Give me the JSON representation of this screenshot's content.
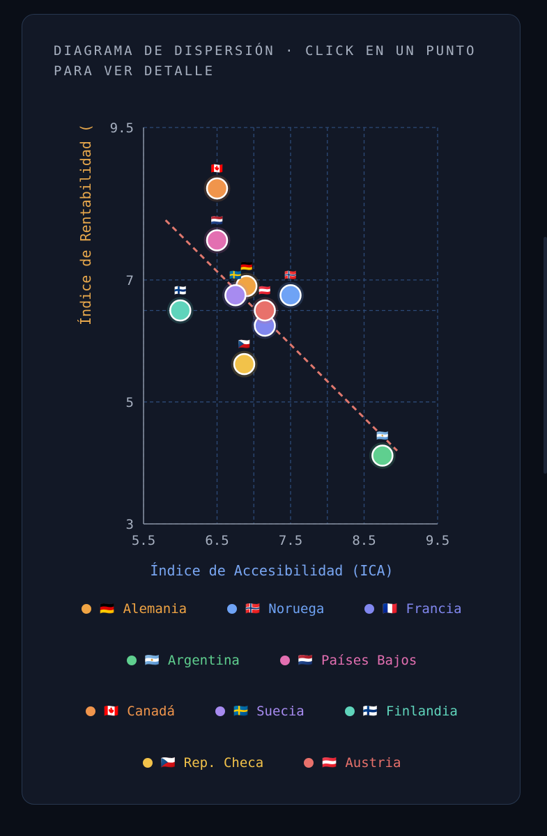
{
  "title": "Diagrama de dispersión · click en un punto para ver detalle",
  "chart_data": {
    "type": "scatter",
    "xlabel": "Índice de Accesibilidad (ICA)",
    "ylabel": "Índice de Rentabilidad (",
    "xlim": [
      5.5,
      9.5
    ],
    "ylim": [
      3,
      9.5
    ],
    "xticks": [
      "5.5",
      "6.5",
      "7.5",
      "8.5",
      "9.5"
    ],
    "yticks": [
      "3",
      "5",
      "7",
      "9.5"
    ],
    "grid": true,
    "trendline": {
      "x": [
        5.8,
        8.95
      ],
      "y": [
        7.98,
        4.2
      ],
      "color": "#e0786e"
    },
    "legend_position": "bottom",
    "series": [
      {
        "name": "Alemania",
        "flag": "🇩🇪",
        "x": 6.9,
        "y": 6.9,
        "color": "#f0a444"
      },
      {
        "name": "Noruega",
        "flag": "🇳🇴",
        "x": 7.5,
        "y": 6.75,
        "color": "#6fa3f5"
      },
      {
        "name": "Francia",
        "flag": "🇫🇷",
        "x": 7.15,
        "y": 6.25,
        "color": "#8187ef"
      },
      {
        "name": "Argentina",
        "flag": "🇦🇷",
        "x": 8.75,
        "y": 4.12,
        "color": "#5fcf8f"
      },
      {
        "name": "Países Bajos",
        "flag": "🇳🇱",
        "x": 6.5,
        "y": 7.65,
        "color": "#e36fb1"
      },
      {
        "name": "Canadá",
        "flag": "🇨🇦",
        "x": 6.5,
        "y": 8.5,
        "color": "#f0954c"
      },
      {
        "name": "Suecia",
        "flag": "🇸🇪",
        "x": 6.75,
        "y": 6.75,
        "color": "#a78bf0"
      },
      {
        "name": "Finlandia",
        "flag": "🇫🇮",
        "x": 6.0,
        "y": 6.5,
        "color": "#5fd4bb"
      },
      {
        "name": "Rep. Checa",
        "flag": "🇨🇿",
        "x": 6.87,
        "y": 5.62,
        "color": "#f2c24a"
      },
      {
        "name": "Austria",
        "flag": "🇦🇹",
        "x": 7.15,
        "y": 6.5,
        "color": "#e8716b"
      }
    ]
  },
  "legend_rows": [
    [
      "Alemania",
      "Noruega",
      "Francia"
    ],
    [
      "Argentina",
      "Países Bajos"
    ],
    [
      "Canadá",
      "Suecia",
      "Finlandia"
    ],
    [
      "Rep. Checa",
      "Austria"
    ]
  ]
}
